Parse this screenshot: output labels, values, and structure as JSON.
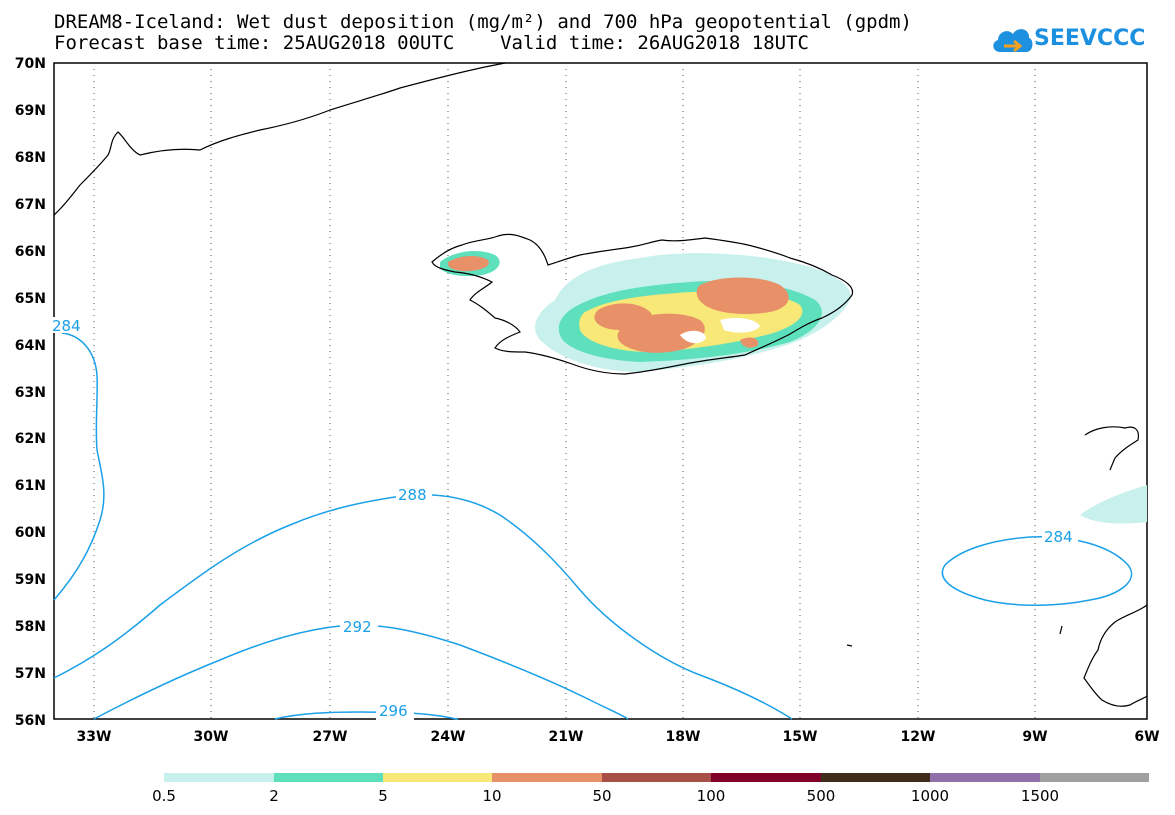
{
  "title": {
    "line1": "DREAM8-Iceland: Wet dust deposition (mg/m²) and 700 hPa geopotential (gpdm)",
    "line2": "Forecast base time: 25AUG2018 00UTC    Valid time: 26AUG2018 18UTC"
  },
  "logo": {
    "text": "SEEVCCC",
    "icon": "cloud-icon"
  },
  "map": {
    "lat_labels": [
      "70N",
      "69N",
      "68N",
      "67N",
      "66N",
      "65N",
      "64N",
      "63N",
      "62N",
      "61N",
      "60N",
      "59N",
      "58N",
      "57N",
      "56N"
    ],
    "lon_labels": [
      "33W",
      "30W",
      "27W",
      "24W",
      "21W",
      "18W",
      "15W",
      "12W",
      "9W",
      "6W"
    ],
    "contour_labels": [
      "284",
      "288",
      "292",
      "296",
      "284"
    ],
    "region": "Iceland",
    "colors": {
      "coast": "#000000",
      "contour": "#1aa0e8",
      "grid": "#555555"
    }
  },
  "legend": {
    "labels": [
      "0.5",
      "2",
      "5",
      "10",
      "50",
      "100",
      "500",
      "1000",
      "1500"
    ],
    "colors": [
      "#c8f0ec",
      "#5ee0bc",
      "#f8e878",
      "#e89068",
      "#a85048",
      "#800028",
      "#402c1c",
      "#9070a8",
      "#a0a0a0"
    ]
  }
}
